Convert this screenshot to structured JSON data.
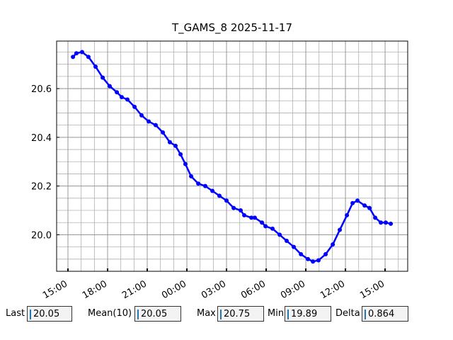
{
  "chart_data": {
    "type": "line",
    "title": "T_GAMS_8 2025-11-17",
    "x": [
      0.38,
      0.64,
      1.07,
      1.55,
      2.09,
      2.63,
      3.16,
      3.7,
      4.07,
      4.5,
      5.04,
      5.57,
      6.11,
      6.64,
      7.18,
      7.71,
      8.14,
      8.52,
      8.89,
      9.32,
      9.86,
      10.39,
      10.93,
      11.46,
      12.0,
      12.54,
      13.07,
      13.34,
      13.88,
      14.14,
      14.68,
      14.95,
      15.48,
      16.02,
      16.55,
      17.09,
      17.63,
      18.16,
      18.54,
      18.96,
      19.5,
      20.04,
      20.57,
      21.11,
      21.54,
      21.91,
      22.45,
      22.82,
      23.25,
      23.68,
      24.05,
      24.43
    ],
    "series": [
      {
        "name": "T_GAMS_8",
        "color": "#0000ff",
        "values": [
          20.73,
          20.745,
          20.75,
          20.73,
          20.69,
          20.645,
          20.61,
          20.585,
          20.565,
          20.555,
          20.525,
          20.49,
          20.465,
          20.45,
          20.42,
          20.38,
          20.365,
          20.33,
          20.29,
          20.24,
          20.21,
          20.2,
          20.18,
          20.16,
          20.14,
          20.11,
          20.1,
          20.08,
          20.07,
          20.07,
          20.05,
          20.035,
          20.025,
          20.0,
          19.975,
          19.95,
          19.92,
          19.9,
          19.89,
          19.895,
          19.92,
          19.96,
          20.02,
          20.08,
          20.13,
          20.14,
          20.12,
          20.11,
          20.07,
          20.05,
          20.05,
          20.045
        ]
      }
    ],
    "xlim": [
      -0.857,
      25.71
    ],
    "ylim": [
      19.85,
      20.795
    ],
    "xticks": [
      {
        "value": 0,
        "label": "15:00"
      },
      {
        "value": 3,
        "label": "18:00"
      },
      {
        "value": 6,
        "label": "21:00"
      },
      {
        "value": 9,
        "label": "00:00"
      },
      {
        "value": 12,
        "label": "03:00"
      },
      {
        "value": 15,
        "label": "06:00"
      },
      {
        "value": 18,
        "label": "09:00"
      },
      {
        "value": 21,
        "label": "12:00"
      },
      {
        "value": 24,
        "label": "15:00"
      }
    ],
    "yticks": [
      {
        "value": 20.0,
        "label": "20.0"
      },
      {
        "value": 20.2,
        "label": "20.2"
      },
      {
        "value": 20.4,
        "label": "20.4"
      },
      {
        "value": 20.6,
        "label": "20.6"
      }
    ],
    "grid": true
  },
  "stats": [
    {
      "label": "Last",
      "value": "20.05"
    },
    {
      "label": "Mean(10)",
      "value": "20.05"
    },
    {
      "label": "Max",
      "value": "20.75"
    },
    {
      "label": "Min",
      "value": "19.89"
    },
    {
      "label": "Delta",
      "value": "0.864"
    }
  ]
}
